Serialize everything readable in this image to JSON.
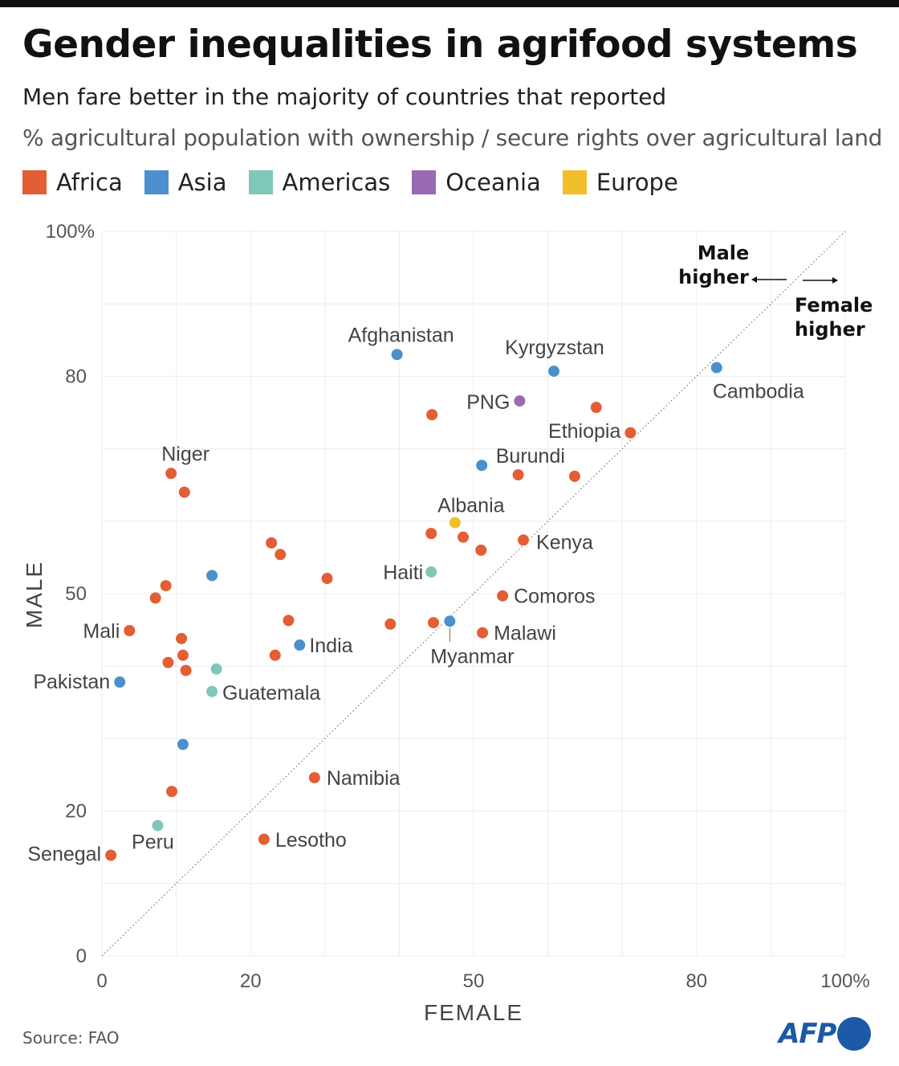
{
  "title": "Gender inequalities in agrifood systems",
  "subtitle": "Men fare better in the majority of countries that reported",
  "description": "% agricultural population with ownership / secure rights over agricultural land",
  "legend": [
    {
      "label": "Africa",
      "color": "#e35d35"
    },
    {
      "label": "Asia",
      "color": "#4b90cc"
    },
    {
      "label": "Americas",
      "color": "#7fc7b8"
    },
    {
      "label": "Oceania",
      "color": "#9a69b3"
    },
    {
      "label": "Europe",
      "color": "#f2bd2a"
    }
  ],
  "annotations": {
    "male_higher": [
      "Male",
      "higher"
    ],
    "female_higher": [
      "Female",
      "higher"
    ]
  },
  "source": "Source: FAO",
  "logo": "AFP",
  "chart_data": {
    "type": "scatter",
    "xlabel": "FEMALE",
    "ylabel": "MALE",
    "xlim": [
      0,
      100
    ],
    "ylim": [
      0,
      100
    ],
    "x_ticks": [
      "0",
      "20",
      "50",
      "80",
      "100%"
    ],
    "x_tick_values": [
      0,
      20,
      50,
      80,
      100
    ],
    "y_ticks": [
      "0",
      "20",
      "50",
      "80",
      "100%"
    ],
    "y_tick_values": [
      0,
      20,
      50,
      80,
      100
    ],
    "grid": true,
    "diagonal": "y = x dotted line",
    "points": [
      {
        "label": "Afghanistan",
        "region": "Asia",
        "x": 39.7,
        "y": 83.0
      },
      {
        "label": "Kyrgyzstan",
        "region": "Asia",
        "x": 60.8,
        "y": 80.7
      },
      {
        "label": "Cambodia",
        "region": "Asia",
        "x": 82.7,
        "y": 81.2
      },
      {
        "label": "PNG",
        "region": "Oceania",
        "x": 56.2,
        "y": 76.6
      },
      {
        "label": "",
        "region": "Africa",
        "x": 44.4,
        "y": 74.7
      },
      {
        "label": "",
        "region": "Africa",
        "x": 66.5,
        "y": 75.7
      },
      {
        "label": "Ethiopia",
        "region": "Africa",
        "x": 71.1,
        "y": 72.2
      },
      {
        "label": "",
        "region": "Asia",
        "x": 51.1,
        "y": 67.7
      },
      {
        "label": "Burundi",
        "region": "Africa",
        "x": 63.6,
        "y": 66.2
      },
      {
        "label": "",
        "region": "Africa",
        "x": 56.0,
        "y": 66.4
      },
      {
        "label": "Niger",
        "region": "Africa",
        "x": 9.3,
        "y": 66.6
      },
      {
        "label": "",
        "region": "Africa",
        "x": 11.1,
        "y": 64.0
      },
      {
        "label": "Albania",
        "region": "Europe",
        "x": 47.5,
        "y": 59.8
      },
      {
        "label": "",
        "region": "Africa",
        "x": 44.3,
        "y": 58.3
      },
      {
        "label": "",
        "region": "Africa",
        "x": 48.6,
        "y": 57.8
      },
      {
        "label": "",
        "region": "Africa",
        "x": 51.0,
        "y": 56.0
      },
      {
        "label": "Kenya",
        "region": "Africa",
        "x": 56.7,
        "y": 57.4
      },
      {
        "label": "",
        "region": "Africa",
        "x": 22.8,
        "y": 57.0
      },
      {
        "label": "",
        "region": "Africa",
        "x": 24.0,
        "y": 55.4
      },
      {
        "label": "",
        "region": "Asia",
        "x": 14.8,
        "y": 52.5
      },
      {
        "label": "",
        "region": "Africa",
        "x": 30.3,
        "y": 52.1
      },
      {
        "label": "Haiti",
        "region": "Americas",
        "x": 44.3,
        "y": 53.0
      },
      {
        "label": "",
        "region": "Africa",
        "x": 8.6,
        "y": 51.1
      },
      {
        "label": "",
        "region": "Africa",
        "x": 7.2,
        "y": 49.4
      },
      {
        "label": "Comoros",
        "region": "Africa",
        "x": 53.9,
        "y": 49.7
      },
      {
        "label": "Mali",
        "region": "Africa",
        "x": 3.7,
        "y": 44.9
      },
      {
        "label": "",
        "region": "Africa",
        "x": 25.1,
        "y": 46.3
      },
      {
        "label": "",
        "region": "Africa",
        "x": 38.8,
        "y": 45.8
      },
      {
        "label": "",
        "region": "Africa",
        "x": 44.6,
        "y": 46.0
      },
      {
        "label": "Myanmar",
        "region": "Asia",
        "x": 46.8,
        "y": 46.2
      },
      {
        "label": "Malawi",
        "region": "Africa",
        "x": 51.2,
        "y": 44.6
      },
      {
        "label": "",
        "region": "Africa",
        "x": 10.7,
        "y": 43.8
      },
      {
        "label": "India",
        "region": "Asia",
        "x": 26.6,
        "y": 42.9
      },
      {
        "label": "",
        "region": "Africa",
        "x": 10.9,
        "y": 41.5
      },
      {
        "label": "",
        "region": "Africa",
        "x": 23.3,
        "y": 41.5
      },
      {
        "label": "",
        "region": "Africa",
        "x": 8.9,
        "y": 40.5
      },
      {
        "label": "",
        "region": "Africa",
        "x": 11.3,
        "y": 39.4
      },
      {
        "label": "",
        "region": "Americas",
        "x": 15.4,
        "y": 39.6
      },
      {
        "label": "Pakistan",
        "region": "Asia",
        "x": 2.4,
        "y": 37.8
      },
      {
        "label": "Guatemala",
        "region": "Americas",
        "x": 14.8,
        "y": 36.5
      },
      {
        "label": "",
        "region": "Asia",
        "x": 10.9,
        "y": 29.2
      },
      {
        "label": "Namibia",
        "region": "Africa",
        "x": 28.6,
        "y": 24.6
      },
      {
        "label": "",
        "region": "Africa",
        "x": 9.4,
        "y": 22.7
      },
      {
        "label": "Peru",
        "region": "Americas",
        "x": 7.5,
        "y": 18.0
      },
      {
        "label": "Lesotho",
        "region": "Africa",
        "x": 21.8,
        "y": 16.1
      },
      {
        "label": "Senegal",
        "region": "Africa",
        "x": 1.2,
        "y": 13.9
      }
    ]
  }
}
